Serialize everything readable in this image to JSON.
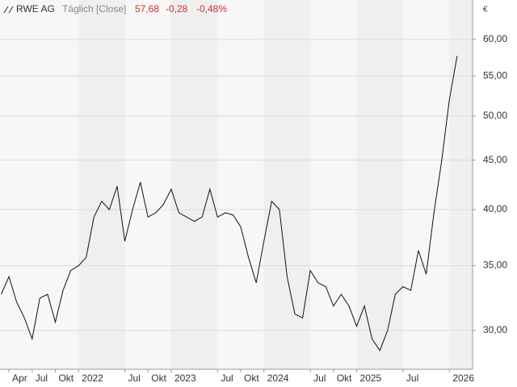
{
  "chart_data": {
    "type": "line",
    "title": "RWE AG",
    "subtitle": "Täglich [Close]",
    "last_price": "57,68",
    "change": "-0,28",
    "change_pct": "-0,48%",
    "currency": "€",
    "x": [
      "2021-03",
      "2021-04",
      "2021-05",
      "2021-06",
      "2021-07",
      "2021-08",
      "2021-09",
      "2021-10",
      "2021-11",
      "2021-12",
      "2022-01",
      "2022-02",
      "2022-03",
      "2022-04",
      "2022-05",
      "2022-06",
      "2022-07",
      "2022-08",
      "2022-09",
      "2022-10",
      "2022-11",
      "2022-12",
      "2023-01",
      "2023-02",
      "2023-03",
      "2023-04",
      "2023-05",
      "2023-06",
      "2023-07",
      "2023-08",
      "2023-09",
      "2023-10",
      "2023-11",
      "2023-12",
      "2024-01",
      "2024-02",
      "2024-03",
      "2024-04",
      "2024-05",
      "2024-06",
      "2024-07",
      "2024-08",
      "2024-09",
      "2024-10",
      "2024-11",
      "2024-12",
      "2025-01",
      "2025-02",
      "2025-03",
      "2025-04",
      "2025-05",
      "2025-06",
      "2025-07",
      "2025-08",
      "2025-09",
      "2025-10",
      "2025-11",
      "2025-12",
      "2026-01",
      "2026-02"
    ],
    "series": [
      {
        "name": "RWE AG",
        "color": "#111111",
        "values": [
          32.7,
          34.1,
          32.1,
          30.9,
          29.4,
          32.4,
          32.7,
          30.6,
          33.0,
          34.6,
          35.0,
          35.7,
          39.3,
          40.8,
          40.0,
          42.3,
          37.1,
          40.0,
          42.7,
          39.3,
          39.7,
          40.5,
          42.0,
          39.7,
          39.3,
          38.9,
          39.3,
          42.0,
          39.3,
          39.7,
          39.5,
          38.4,
          35.7,
          33.6,
          37.1,
          40.8,
          40.0,
          34.1,
          31.2,
          30.9,
          34.6,
          33.6,
          33.3,
          31.8,
          32.7,
          31.8,
          30.3,
          31.8,
          29.4,
          28.6,
          30.0,
          32.7,
          33.3,
          33.0,
          36.3,
          34.3,
          39.7,
          44.9,
          52.0,
          57.68
        ]
      }
    ],
    "xlim": [
      "2021-03",
      "2026-04"
    ],
    "xticks": [
      {
        "value": "2021-04",
        "label": "Apr"
      },
      {
        "value": "2021-07",
        "label": "Jul"
      },
      {
        "value": "2021-10",
        "label": "Okt"
      },
      {
        "value": "2022-01",
        "label": "2022"
      },
      {
        "value": "2022-07",
        "label": "Jul"
      },
      {
        "value": "2022-10",
        "label": "Okt"
      },
      {
        "value": "2023-01",
        "label": "2023"
      },
      {
        "value": "2023-07",
        "label": "Jul"
      },
      {
        "value": "2023-10",
        "label": "Okt"
      },
      {
        "value": "2024-01",
        "label": "2024"
      },
      {
        "value": "2024-07",
        "label": "Jul"
      },
      {
        "value": "2024-10",
        "label": "Okt"
      },
      {
        "value": "2025-01",
        "label": "2025"
      },
      {
        "value": "2025-07",
        "label": "Jul"
      },
      {
        "value": "2026-01",
        "label": "2026"
      }
    ],
    "ylim": [
      27.35,
      65.9
    ],
    "yticks": [
      {
        "value": 30,
        "label": "30,00"
      },
      {
        "value": 35,
        "label": "35,00"
      },
      {
        "value": 40,
        "label": "40,00"
      },
      {
        "value": 45,
        "label": "45,00"
      },
      {
        "value": 50,
        "label": "50,00"
      },
      {
        "value": 55,
        "label": "55,00"
      },
      {
        "value": 60,
        "label": "60,00"
      }
    ],
    "log_scale": true,
    "grid": true
  }
}
